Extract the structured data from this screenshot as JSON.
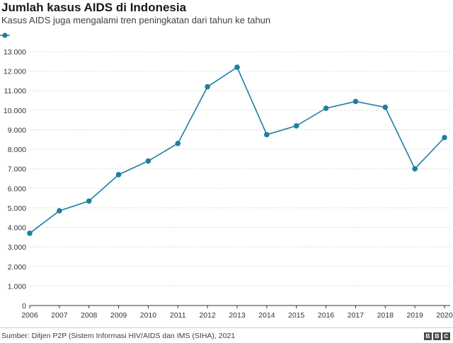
{
  "title": "Jumlah kasus AIDS di Indonesia",
  "subtitle": "Kasus AIDS juga mengalami tren peningkatan dari tahun ke tahun",
  "source": "Sumber: Ditjen P2P (Sistem Informasi HIV/AIDS dan IMS (SIHA), 2021",
  "logo": {
    "letters": [
      "B",
      "B",
      "C"
    ],
    "name": "BBC"
  },
  "colors": {
    "line": "#1d7fa0",
    "grid": "#d9d9d9",
    "axis": "#333333"
  },
  "chart_data": {
    "type": "line",
    "title": "Jumlah kasus AIDS di Indonesia",
    "subtitle": "Kasus AIDS juga mengalami tren peningkatan dari tahun ke tahun",
    "xlabel": "",
    "ylabel": "",
    "x": [
      "2006",
      "2007",
      "2008",
      "2009",
      "2010",
      "2011",
      "2012",
      "2013",
      "2014",
      "2015",
      "2016",
      "2017",
      "2018",
      "2019",
      "2020"
    ],
    "series": [
      {
        "values": [
          3700,
          4850,
          5350,
          6700,
          7400,
          8300,
          11200,
          12200,
          8750,
          9200,
          10100,
          10450,
          10150,
          7000,
          8600
        ]
      }
    ],
    "ylim": [
      0,
      13000
    ],
    "yticks": [
      0,
      1000,
      2000,
      3000,
      4000,
      5000,
      6000,
      7000,
      8000,
      9000,
      10000,
      11000,
      12000,
      13000
    ],
    "ytick_labels": [
      "0",
      "1.000",
      "2.000",
      "3.000",
      "4.000",
      "5.000",
      "6.000",
      "7.000",
      "8.000",
      "9.000",
      "10.000",
      "11.000",
      "12.000",
      "13.000"
    ],
    "grid": true,
    "legend": "top-left"
  }
}
